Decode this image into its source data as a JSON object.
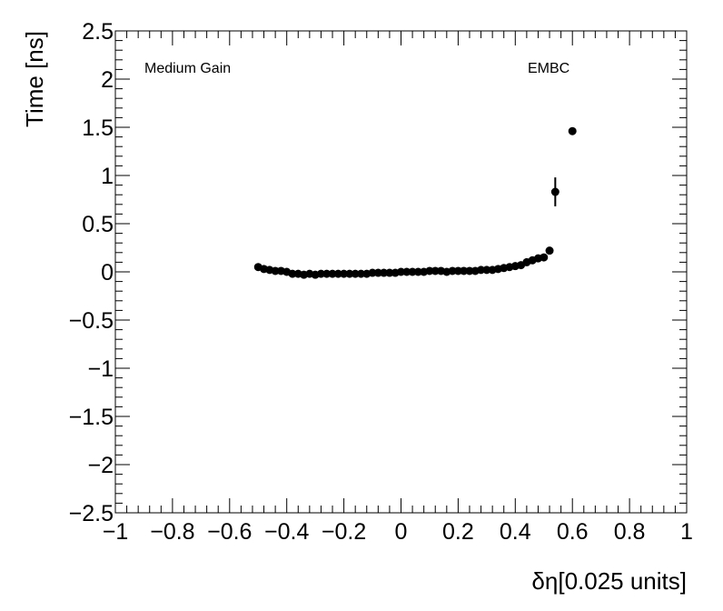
{
  "chart_data": {
    "type": "scatter",
    "xlabel": "δη[0.025 units]",
    "ylabel": "Time [ns]",
    "xlim": [
      -1,
      1
    ],
    "ylim": [
      -2.5,
      2.5
    ],
    "x_ticks": [
      -1,
      -0.8,
      -0.6,
      -0.4,
      -0.2,
      0,
      0.2,
      0.4,
      0.6,
      0.8,
      1
    ],
    "x_tick_labels": [
      "−1",
      "−0.8",
      "−0.6",
      "−0.4",
      "−0.2",
      "0",
      "0.2",
      "0.4",
      "0.6",
      "0.8",
      "1"
    ],
    "y_ticks": [
      -2.5,
      -2,
      -1.5,
      -1,
      -0.5,
      0,
      0.5,
      1,
      1.5,
      2,
      2.5
    ],
    "y_tick_labels": [
      "−2.5",
      "−2",
      "−1.5",
      "−1",
      "−0.5",
      "0",
      "0.5",
      "1",
      "1.5",
      "2",
      "2.5"
    ],
    "annotations": [
      "Medium Gain",
      "EMBC"
    ],
    "grid": false,
    "legend": "none",
    "marker_color": "#000000",
    "series": [
      {
        "x": [
          -0.5,
          -0.48,
          -0.46,
          -0.44,
          -0.42,
          -0.4,
          -0.38,
          -0.36,
          -0.34,
          -0.32,
          -0.3,
          -0.28,
          -0.26,
          -0.24,
          -0.22,
          -0.2,
          -0.18,
          -0.16,
          -0.14,
          -0.12,
          -0.1,
          -0.08,
          -0.06,
          -0.04,
          -0.02,
          0,
          0.02,
          0.04,
          0.06,
          0.08,
          0.1,
          0.12,
          0.14,
          0.16,
          0.18,
          0.2,
          0.22,
          0.24,
          0.26,
          0.28,
          0.3,
          0.32,
          0.34,
          0.36,
          0.38,
          0.4,
          0.42,
          0.44,
          0.46,
          0.48,
          0.5,
          0.52,
          0.6
        ],
        "y": [
          0.05,
          0.03,
          0.02,
          0.01,
          0.01,
          0.0,
          -0.02,
          -0.02,
          -0.03,
          -0.02,
          -0.03,
          -0.02,
          -0.02,
          -0.02,
          -0.02,
          -0.02,
          -0.02,
          -0.02,
          -0.02,
          -0.02,
          -0.01,
          -0.01,
          -0.01,
          -0.01,
          -0.01,
          0.0,
          0.0,
          0.0,
          0.0,
          0.0,
          0.01,
          0.01,
          0.01,
          0.0,
          0.01,
          0.01,
          0.01,
          0.01,
          0.01,
          0.02,
          0.02,
          0.02,
          0.03,
          0.04,
          0.05,
          0.06,
          0.07,
          0.1,
          0.12,
          0.14,
          0.15,
          0.22,
          1.46
        ],
        "yerr": [
          0.02,
          0.01,
          0.01,
          0.01,
          0.01,
          0.01,
          0.01,
          0.01,
          0.01,
          0.01,
          0.01,
          0.01,
          0.01,
          0.01,
          0.01,
          0.01,
          0.01,
          0.01,
          0.01,
          0.01,
          0.01,
          0.01,
          0.01,
          0.01,
          0.01,
          0.01,
          0.01,
          0.01,
          0.01,
          0.01,
          0.01,
          0.01,
          0.01,
          0.01,
          0.01,
          0.01,
          0.01,
          0.01,
          0.01,
          0.01,
          0.01,
          0.01,
          0.01,
          0.01,
          0.01,
          0.01,
          0.01,
          0.01,
          0.01,
          0.02,
          0.02,
          0.02,
          0.01
        ]
      },
      {
        "x": [
          0.54
        ],
        "y": [
          0.83
        ],
        "yerr": [
          0.15
        ]
      }
    ]
  }
}
